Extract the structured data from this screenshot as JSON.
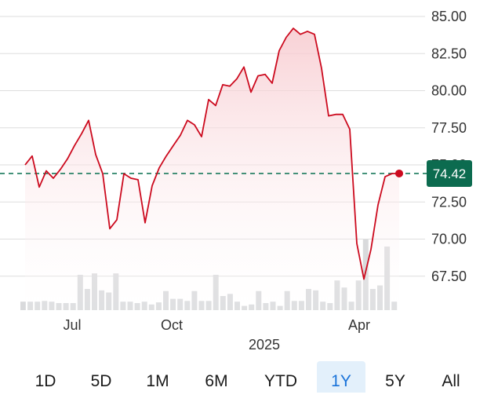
{
  "chart_data": {
    "type": "area",
    "x_tick_labels": [
      "Jul",
      "Oct",
      "Apr"
    ],
    "year_label": "2025",
    "y_ticks": [
      "85.00",
      "82.50",
      "80.00",
      "77.50",
      "75.00",
      "72.50",
      "70.00",
      "67.50"
    ],
    "ylim": [
      64.5,
      85.5
    ],
    "grid": true,
    "current_value": 74.42,
    "current_label": "74.42",
    "colors": {
      "line": "#cc0a1e",
      "area_top": "#f7c9ce",
      "reference_line": "#1a7a5c",
      "price_badge": "#0c6b4f",
      "volume": "#d9dadc"
    },
    "series": [
      {
        "values": [
          75.0,
          75.6,
          73.5,
          74.6,
          74.1,
          74.7,
          75.4,
          76.3,
          77.1,
          78.0,
          75.7,
          74.4,
          70.7,
          71.3,
          74.4,
          74.1,
          74.0,
          71.1,
          73.6,
          74.8,
          75.6,
          76.3,
          77.0,
          78.0,
          77.7,
          76.9,
          79.4,
          79.0,
          80.4,
          80.3,
          80.8,
          81.6,
          79.9,
          81.0,
          81.1,
          80.5,
          82.7,
          83.6,
          84.2,
          83.8,
          84.0,
          83.8,
          81.5,
          78.3,
          78.4,
          78.4,
          77.4,
          69.7,
          67.3,
          69.3,
          72.3,
          74.2,
          74.42,
          74.42
        ]
      }
    ],
    "volume": [
      0.12,
      0.12,
      0.12,
      0.13,
      0.12,
      0.1,
      0.1,
      0.1,
      0.5,
      0.3,
      0.52,
      0.28,
      0.25,
      0.52,
      0.12,
      0.12,
      0.1,
      0.12,
      0.08,
      0.11,
      0.27,
      0.16,
      0.16,
      0.13,
      0.27,
      0.13,
      0.13,
      0.5,
      0.2,
      0.23,
      0.12,
      0.06,
      0.08,
      0.27,
      0.1,
      0.12,
      0.06,
      0.27,
      0.13,
      0.13,
      0.3,
      0.28,
      0.12,
      0.1,
      0.42,
      0.32,
      0.12,
      0.42,
      1.0,
      0.3,
      0.35,
      0.9,
      0.12
    ]
  },
  "ranges": {
    "items": [
      "1D",
      "5D",
      "1M",
      "6M",
      "YTD",
      "1Y",
      "5Y",
      "All"
    ],
    "active": "1Y"
  }
}
